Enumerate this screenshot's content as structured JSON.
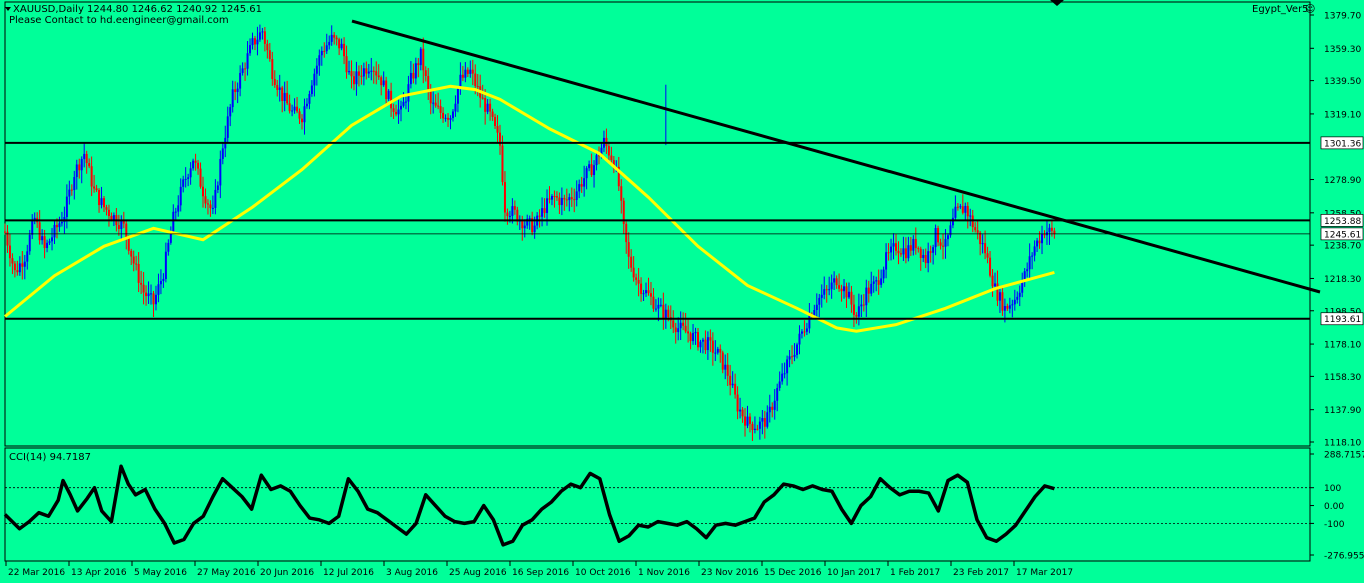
{
  "header": {
    "symbol_line": "XAUUSD,Daily  1244.80 1246.62 1240.92 1245.61",
    "contact": "Please Contact to hd.eengineer@gmail.com",
    "indicator_name": "Egypt_Ver5"
  },
  "colors": {
    "background": "#00ff99",
    "bull": "#0000ff",
    "bear": "#ff0000",
    "ma": "#ffff00",
    "lines": "#000000"
  },
  "chart_data": [
    {
      "type": "candlestick",
      "title": "",
      "x_ticks": [
        "22 Mar 2016",
        "13 Apr 2016",
        "5 May 2016",
        "27 May 2016",
        "20 Jun 2016",
        "12 Jul 2016",
        "3 Aug 2016",
        "25 Aug 2016",
        "16 Sep 2016",
        "10 Oct 2016",
        "1 Nov 2016",
        "23 Nov 2016",
        "15 Dec 2016",
        "10 Jan 2017",
        "1 Feb 2017",
        "23 Feb 2017",
        "17 Mar 2017"
      ],
      "y_ticks": [
        "1379.70",
        "1359.30",
        "1339.50",
        "1319.10",
        "1278.90",
        "1258.50",
        "1238.70",
        "1218.30",
        "1198.50",
        "1178.10",
        "1158.30",
        "1137.90",
        "1118.10"
      ],
      "ylim": [
        1118.1,
        1379.7
      ],
      "level_labels": [
        "1301.36",
        "1253.88",
        "1245.61",
        "1193.61"
      ],
      "levels": [
        1301.36,
        1253.88,
        1193.61
      ],
      "current_price": 1245.61,
      "trendline": {
        "from": [
          "12 Jul 2016",
          1376
        ],
        "to": [
          "end",
          1210
        ]
      },
      "close_path": [
        [
          0,
          1247
        ],
        [
          4,
          1222
        ],
        [
          8,
          1232
        ],
        [
          12,
          1255
        ],
        [
          16,
          1236
        ],
        [
          20,
          1247
        ],
        [
          24,
          1258
        ],
        [
          28,
          1283
        ],
        [
          32,
          1295
        ],
        [
          36,
          1272
        ],
        [
          40,
          1262
        ],
        [
          44,
          1256
        ],
        [
          48,
          1250
        ],
        [
          52,
          1228
        ],
        [
          56,
          1210
        ],
        [
          60,
          1203
        ],
        [
          64,
          1222
        ],
        [
          68,
          1255
        ],
        [
          72,
          1276
        ],
        [
          76,
          1292
        ],
        [
          80,
          1272
        ],
        [
          84,
          1258
        ],
        [
          88,
          1300
        ],
        [
          92,
          1330
        ],
        [
          96,
          1346
        ],
        [
          100,
          1362
        ],
        [
          104,
          1370
        ],
        [
          108,
          1345
        ],
        [
          112,
          1330
        ],
        [
          116,
          1320
        ],
        [
          120,
          1318
        ],
        [
          124,
          1340
        ],
        [
          128,
          1358
        ],
        [
          132,
          1365
        ],
        [
          136,
          1360
        ],
        [
          140,
          1338
        ],
        [
          144,
          1345
        ],
        [
          148,
          1350
        ],
        [
          152,
          1340
        ],
        [
          156,
          1325
        ],
        [
          160,
          1320
        ],
        [
          164,
          1340
        ],
        [
          168,
          1355
        ],
        [
          172,
          1325
        ],
        [
          176,
          1320
        ],
        [
          180,
          1318
        ],
        [
          184,
          1340
        ],
        [
          188,
          1345
        ],
        [
          192,
          1330
        ],
        [
          196,
          1318
        ],
        [
          200,
          1300
        ],
        [
          202,
          1262
        ],
        [
          206,
          1258
        ],
        [
          210,
          1252
        ],
        [
          214,
          1250
        ],
        [
          218,
          1262
        ],
        [
          222,
          1268
        ],
        [
          226,
          1265
        ],
        [
          230,
          1270
        ],
        [
          234,
          1280
        ],
        [
          238,
          1288
        ],
        [
          242,
          1302
        ],
        [
          246,
          1290
        ],
        [
          248,
          1275
        ],
        [
          250,
          1248
        ],
        [
          252,
          1230
        ],
        [
          256,
          1215
        ],
        [
          260,
          1208
        ],
        [
          264,
          1200
        ],
        [
          268,
          1195
        ],
        [
          272,
          1188
        ],
        [
          276,
          1185
        ],
        [
          280,
          1180
        ],
        [
          284,
          1178
        ],
        [
          288,
          1172
        ],
        [
          292,
          1160
        ],
        [
          296,
          1140
        ],
        [
          300,
          1130
        ],
        [
          304,
          1128
        ],
        [
          308,
          1132
        ],
        [
          312,
          1150
        ],
        [
          316,
          1165
        ],
        [
          320,
          1178
        ],
        [
          324,
          1192
        ],
        [
          328,
          1205
        ],
        [
          332,
          1210
        ],
        [
          336,
          1218
        ],
        [
          340,
          1210
        ],
        [
          344,
          1195
        ],
        [
          348,
          1210
        ],
        [
          352,
          1215
        ],
        [
          356,
          1230
        ],
        [
          360,
          1238
        ],
        [
          364,
          1235
        ],
        [
          368,
          1240
        ],
        [
          372,
          1230
        ],
        [
          376,
          1245
        ],
        [
          380,
          1238
        ],
        [
          384,
          1258
        ],
        [
          388,
          1262
        ],
        [
          392,
          1248
        ],
        [
          396,
          1235
        ],
        [
          400,
          1212
        ],
        [
          404,
          1200
        ],
        [
          408,
          1206
        ],
        [
          412,
          1220
        ],
        [
          416,
          1238
        ],
        [
          420,
          1248
        ],
        [
          424,
          1245.61
        ]
      ],
      "ma_path": [
        [
          0,
          1195
        ],
        [
          20,
          1220
        ],
        [
          40,
          1238
        ],
        [
          60,
          1249
        ],
        [
          80,
          1242
        ],
        [
          100,
          1262
        ],
        [
          120,
          1285
        ],
        [
          140,
          1312
        ],
        [
          160,
          1330
        ],
        [
          180,
          1336
        ],
        [
          190,
          1334
        ],
        [
          200,
          1328
        ],
        [
          220,
          1310
        ],
        [
          240,
          1295
        ],
        [
          260,
          1268
        ],
        [
          280,
          1238
        ],
        [
          300,
          1214
        ],
        [
          320,
          1200
        ],
        [
          336,
          1188
        ],
        [
          344,
          1186
        ],
        [
          360,
          1190
        ],
        [
          380,
          1200
        ],
        [
          400,
          1212
        ],
        [
          424,
          1222
        ]
      ]
    },
    {
      "type": "line",
      "title": "CCI(14) 94.7187",
      "y_ticks": [
        "288.7157",
        "100",
        "0.00",
        "-100",
        "-276.9556"
      ],
      "ylim": [
        -276.9556,
        288.7157
      ],
      "levels": [
        100,
        -100
      ],
      "series": [
        {
          "name": "CCI(14)",
          "values": [
            [
              0,
              -50
            ],
            [
              6,
              -130
            ],
            [
              10,
              -90
            ],
            [
              14,
              -40
            ],
            [
              18,
              -60
            ],
            [
              22,
              30
            ],
            [
              24,
              140
            ],
            [
              27,
              60
            ],
            [
              30,
              -30
            ],
            [
              34,
              40
            ],
            [
              37,
              100
            ],
            [
              40,
              -30
            ],
            [
              44,
              -90
            ],
            [
              48,
              220
            ],
            [
              51,
              120
            ],
            [
              54,
              60
            ],
            [
              58,
              90
            ],
            [
              62,
              -20
            ],
            [
              66,
              -100
            ],
            [
              70,
              -210
            ],
            [
              74,
              -190
            ],
            [
              78,
              -100
            ],
            [
              82,
              -60
            ],
            [
              86,
              50
            ],
            [
              90,
              150
            ],
            [
              94,
              100
            ],
            [
              98,
              50
            ],
            [
              102,
              -20
            ],
            [
              106,
              170
            ],
            [
              110,
              90
            ],
            [
              114,
              110
            ],
            [
              118,
              80
            ],
            [
              122,
              0
            ],
            [
              126,
              -70
            ],
            [
              130,
              -80
            ],
            [
              134,
              -100
            ],
            [
              138,
              -60
            ],
            [
              142,
              150
            ],
            [
              146,
              80
            ],
            [
              150,
              -20
            ],
            [
              154,
              -40
            ],
            [
              158,
              -80
            ],
            [
              162,
              -120
            ],
            [
              166,
              -160
            ],
            [
              170,
              -100
            ],
            [
              174,
              60
            ],
            [
              178,
              0
            ],
            [
              182,
              -60
            ],
            [
              186,
              -90
            ],
            [
              190,
              -100
            ],
            [
              194,
              -90
            ],
            [
              198,
              0
            ],
            [
              202,
              -80
            ],
            [
              206,
              -220
            ],
            [
              210,
              -200
            ],
            [
              214,
              -110
            ],
            [
              218,
              -80
            ],
            [
              222,
              -20
            ],
            [
              226,
              20
            ],
            [
              230,
              80
            ],
            [
              234,
              120
            ],
            [
              238,
              100
            ],
            [
              242,
              180
            ],
            [
              246,
              150
            ],
            [
              250,
              -50
            ],
            [
              254,
              -200
            ],
            [
              258,
              -170
            ],
            [
              262,
              -110
            ],
            [
              266,
              -120
            ],
            [
              270,
              -90
            ],
            [
              274,
              -100
            ],
            [
              278,
              -110
            ],
            [
              282,
              -90
            ],
            [
              286,
              -130
            ],
            [
              290,
              -180
            ],
            [
              294,
              -110
            ],
            [
              298,
              -100
            ],
            [
              302,
              -110
            ],
            [
              306,
              -90
            ],
            [
              310,
              -70
            ],
            [
              314,
              20
            ],
            [
              318,
              60
            ],
            [
              322,
              120
            ],
            [
              326,
              110
            ],
            [
              330,
              90
            ],
            [
              334,
              110
            ],
            [
              338,
              90
            ],
            [
              342,
              80
            ],
            [
              346,
              -20
            ],
            [
              350,
              -100
            ],
            [
              354,
              0
            ],
            [
              358,
              50
            ],
            [
              362,
              150
            ],
            [
              366,
              100
            ],
            [
              370,
              60
            ],
            [
              374,
              80
            ],
            [
              378,
              80
            ],
            [
              382,
              70
            ],
            [
              386,
              -30
            ],
            [
              390,
              140
            ],
            [
              394,
              170
            ],
            [
              398,
              130
            ],
            [
              402,
              -80
            ],
            [
              406,
              -180
            ],
            [
              410,
              -200
            ],
            [
              414,
              -160
            ],
            [
              418,
              -110
            ],
            [
              422,
              -30
            ],
            [
              426,
              50
            ],
            [
              430,
              110
            ],
            [
              434,
              94.7
            ]
          ]
        }
      ]
    }
  ]
}
